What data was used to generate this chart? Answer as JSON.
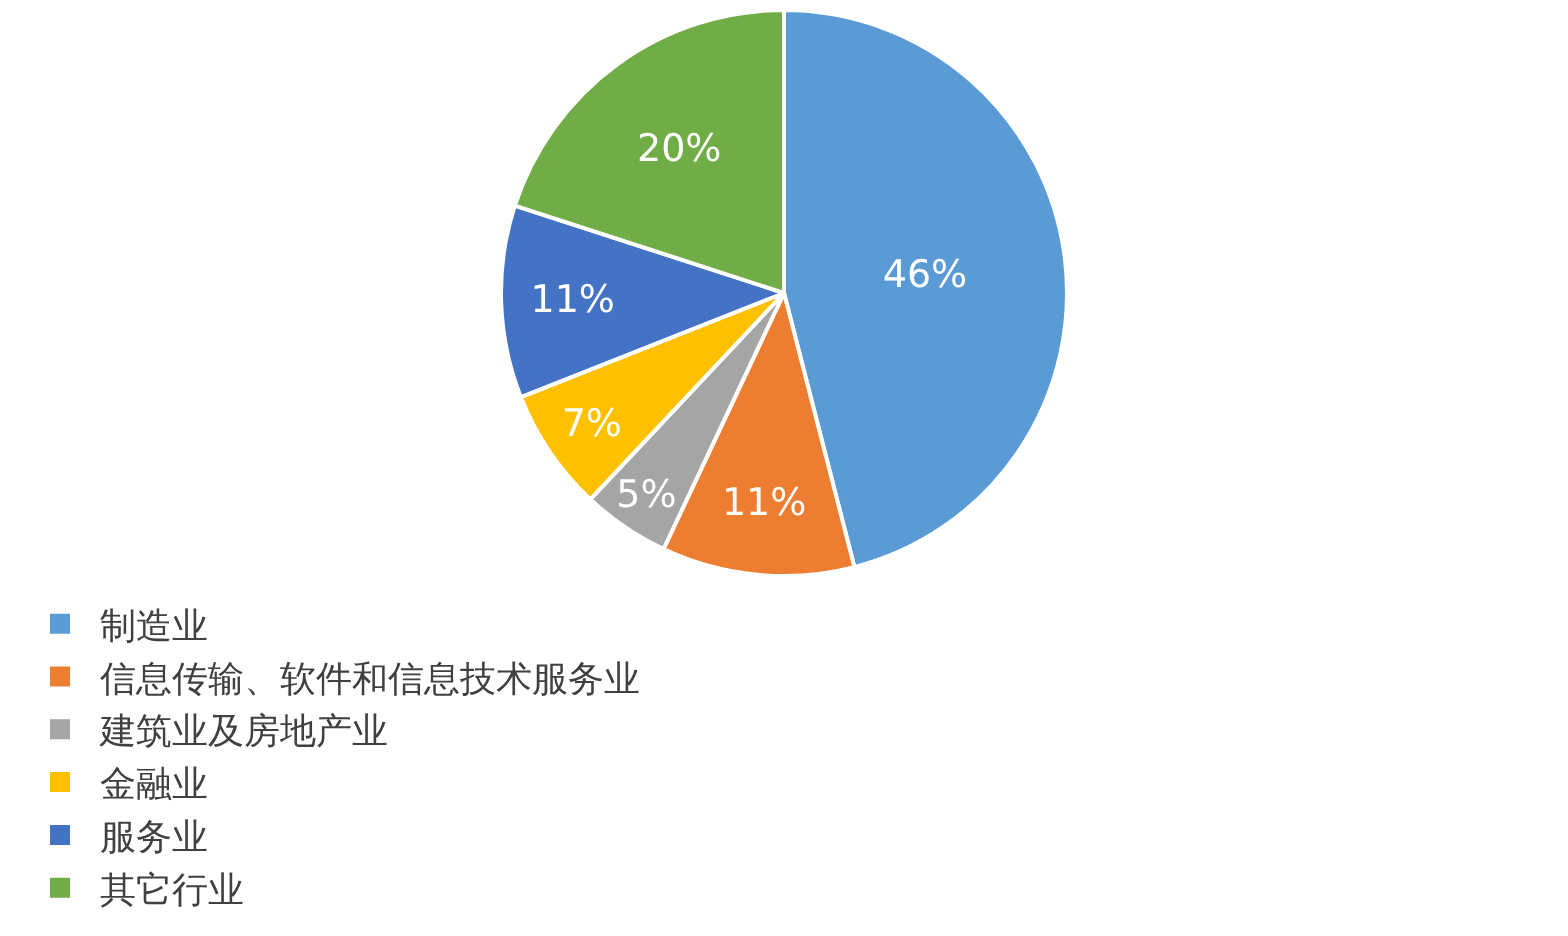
{
  "chart_data": {
    "type": "pie",
    "categories": [
      "制造业",
      "信息传输、软件和信息技术服务业",
      "建筑业及房地产业",
      "金融业",
      "服务业",
      "其它行业"
    ],
    "values": [
      46,
      11,
      5,
      7,
      11,
      20
    ],
    "value_labels": [
      "46%",
      "11%",
      "5%",
      "7%",
      "11%",
      "20%"
    ],
    "colors": [
      "#5b9bd5",
      "#ed7d31",
      "#a5a5a5",
      "#ffc000",
      "#4472c4",
      "#70ad47"
    ],
    "legend": "bottom"
  }
}
